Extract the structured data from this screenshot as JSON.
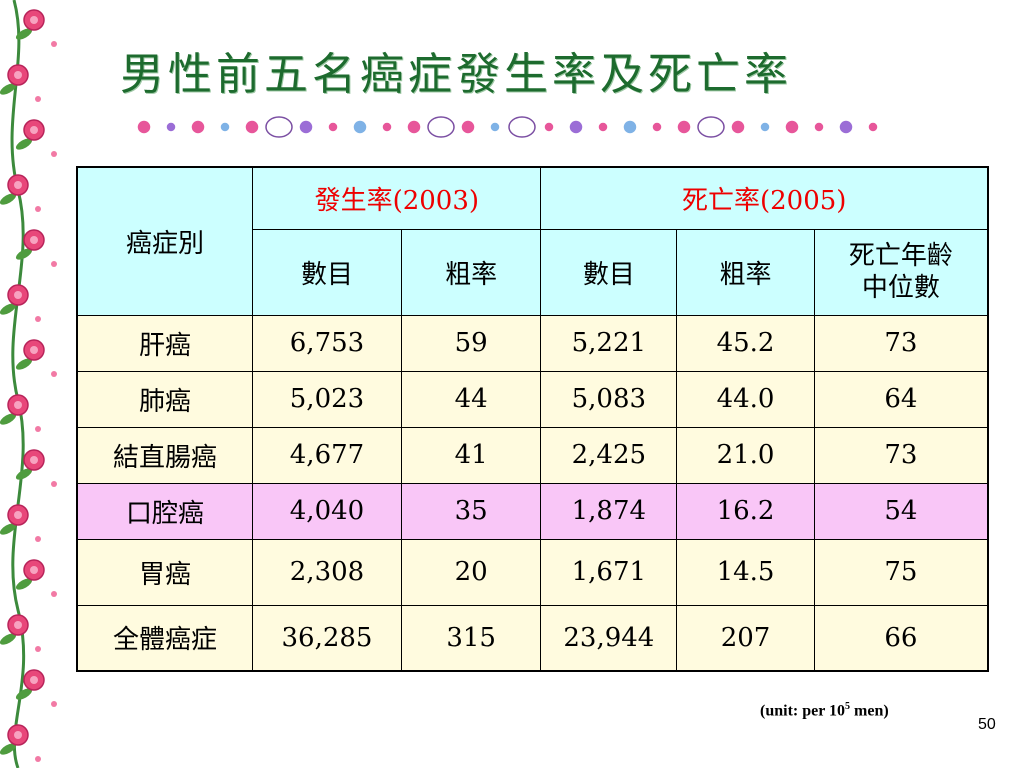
{
  "title": "男性前五名癌症發生率及死亡率",
  "colors": {
    "title": "#1d6b2e",
    "header_bg": "#ccffff",
    "row_bg": "#fffbdf",
    "highlight_bg": "#f9c6f7",
    "header_red": "#ee0000"
  },
  "table": {
    "col_label": "癌症別",
    "group1": "發生率(2003)",
    "group2": "死亡率(2005)",
    "sub": [
      "數目",
      "粗率",
      "數目",
      "粗率"
    ],
    "median_line1": "死亡年齡",
    "median_line2": "中位數",
    "rows": [
      {
        "name": "肝癌",
        "vals": [
          "6,753",
          "59",
          "5,221",
          "45.2",
          "73"
        ]
      },
      {
        "name": "肺癌",
        "vals": [
          "5,023",
          "44",
          "5,083",
          "44.0",
          "64"
        ]
      },
      {
        "name": "結直腸癌",
        "vals": [
          "4,677",
          "41",
          "2,425",
          "21.0",
          "73"
        ]
      },
      {
        "name": "口腔癌",
        "vals": [
          "4,040",
          "35",
          "1,874",
          "16.2",
          "54"
        ]
      },
      {
        "name": "胃癌",
        "vals": [
          "2,308",
          "20",
          "1,671",
          "14.5",
          "75"
        ]
      },
      {
        "name": "全體癌症",
        "vals": [
          "36,285",
          "315",
          "23,944",
          "207",
          "66"
        ]
      }
    ]
  },
  "unit": {
    "prefix": "(unit: per 10",
    "exp": "5",
    "suffix": " men)"
  },
  "page_number": "50",
  "decor": {
    "left": "rose-vine-border",
    "under_title": "flower-and-kitty-garland"
  }
}
